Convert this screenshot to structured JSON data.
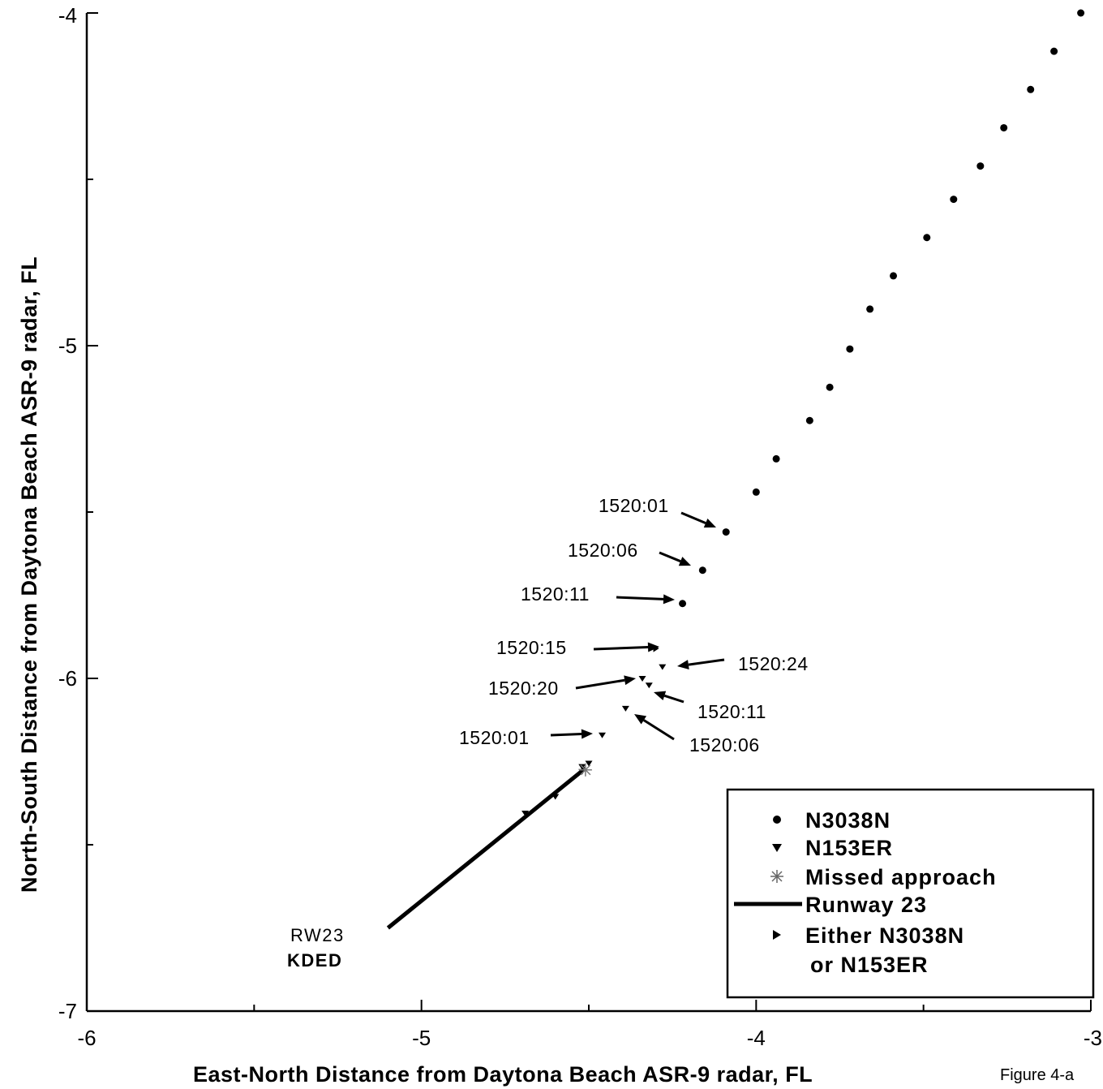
{
  "chart_data": {
    "type": "scatter",
    "title": "",
    "xlabel": "East-North Distance from Daytona Beach ASR-9 radar, FL",
    "ylabel": "North-South Distance from Daytona Beach ASR-9 radar, FL",
    "xlim": [
      -6,
      -3
    ],
    "ylim": [
      -7,
      -4
    ],
    "xticks": [
      -6,
      -5,
      -4,
      -3
    ],
    "xtick_labels": [
      "-6",
      "-5",
      "-4",
      "-3"
    ],
    "yticks": [
      -7,
      -6,
      -5,
      -4
    ],
    "ytick_labels": [
      "-7",
      "-6",
      "-5",
      "-4"
    ],
    "x_minor_ticks": [
      -5.5,
      -4.5,
      -3.5
    ],
    "y_minor_ticks": [
      -6.5,
      -5.5,
      -4.5
    ],
    "grid": false,
    "legend_position": "bottom-right",
    "series": [
      {
        "name": "N3038N",
        "marker": "circle",
        "points": [
          [
            -3.03,
            -4.0
          ],
          [
            -3.11,
            -4.115
          ],
          [
            -3.18,
            -4.23
          ],
          [
            -3.26,
            -4.345
          ],
          [
            -3.33,
            -4.46
          ],
          [
            -3.41,
            -4.56
          ],
          [
            -3.49,
            -4.675
          ],
          [
            -3.59,
            -4.79
          ],
          [
            -3.66,
            -4.89
          ],
          [
            -3.72,
            -5.01
          ],
          [
            -3.78,
            -5.125
          ],
          [
            -3.84,
            -5.225
          ],
          [
            -3.94,
            -5.34
          ],
          [
            -4.0,
            -5.44
          ],
          [
            -4.09,
            -5.56
          ],
          [
            -4.16,
            -5.675
          ],
          [
            -4.22,
            -5.775
          ]
        ]
      },
      {
        "name": "N153ER",
        "marker": "triangle-down",
        "points": [
          [
            -4.28,
            -5.965
          ],
          [
            -4.34,
            -6.0
          ],
          [
            -4.32,
            -6.02
          ],
          [
            -4.39,
            -6.09
          ],
          [
            -4.46,
            -6.17
          ],
          [
            -4.5,
            -6.255
          ],
          [
            -4.52,
            -6.265
          ],
          [
            -4.52,
            -6.28
          ],
          [
            -4.6,
            -6.355
          ],
          [
            -4.69,
            -6.405
          ]
        ]
      },
      {
        "name": "Missed approach",
        "marker": "asterisk",
        "points": [
          [
            -4.51,
            -6.275
          ]
        ]
      },
      {
        "name": "Runway 23",
        "marker": "line",
        "points": [
          [
            -5.1,
            -6.75
          ],
          [
            -4.51,
            -6.27
          ]
        ]
      },
      {
        "name": "Either N3038N\nor N153ER",
        "marker": "triangle-right",
        "points": [
          [
            -4.3,
            -5.91
          ]
        ]
      }
    ],
    "annotations": [
      {
        "text": "1520:01",
        "group": "N3038N"
      },
      {
        "text": "1520:06",
        "group": "N3038N"
      },
      {
        "text": "1520:11",
        "group": "N3038N"
      },
      {
        "text": "1520:15",
        "group": "either"
      },
      {
        "text": "1520:24",
        "group": "N153ER"
      },
      {
        "text": "1520:20",
        "group": "N153ER"
      },
      {
        "text": "1520:11",
        "group": "N153ER"
      },
      {
        "text": "1520:06",
        "group": "N153ER"
      },
      {
        "text": "1520:01",
        "group": "N153ER"
      }
    ],
    "runway_label": "RW23",
    "airport_label": "KDED",
    "legend": {
      "entries": [
        "N3038N",
        "N153ER",
        "Missed approach",
        "Runway 23",
        "Either N3038N",
        "or N153ER"
      ]
    },
    "figure_caption": "Figure 4-a"
  }
}
